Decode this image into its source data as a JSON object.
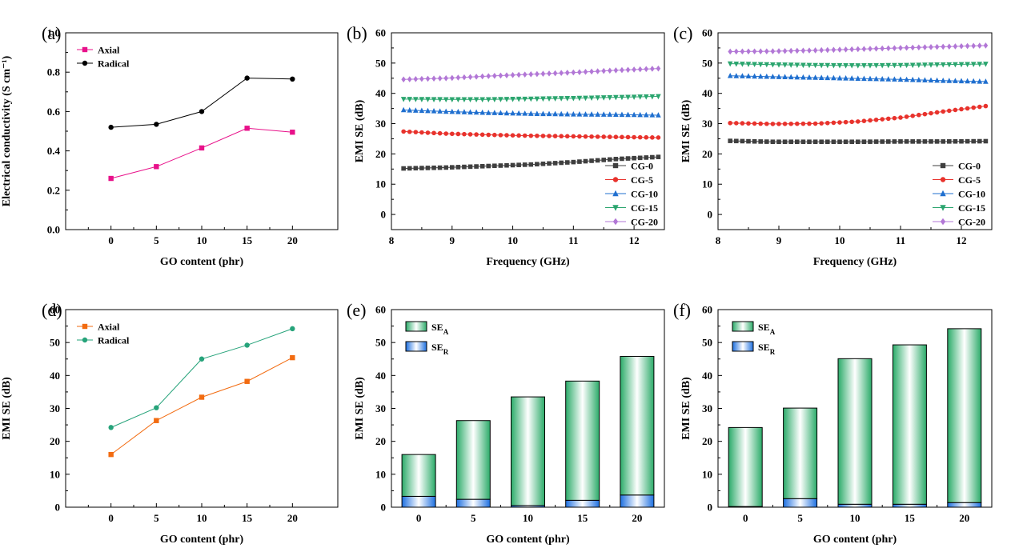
{
  "colors": {
    "axial_a": "#e8118a",
    "radical_a": "#000000",
    "cg0": "#3f3f3f",
    "cg5": "#e8322c",
    "cg10": "#1f6fcf",
    "cg15": "#2aa56e",
    "cg20": "#b277d6",
    "axial_d": "#f26b10",
    "radical_d": "#26a37a",
    "se_a": "#2bab69",
    "se_r": "#1d6fe0"
  },
  "chart_data": [
    {
      "panel": "(a)",
      "type": "line",
      "x": [
        0,
        5,
        10,
        15,
        20
      ],
      "xlabel": "GO content (phr)",
      "ylabel": "Electrical conductivity (S cm⁻¹)",
      "xticks": [
        "0",
        "5",
        "10",
        "15",
        "20"
      ],
      "yticks": [
        "0.0",
        "0.2",
        "0.4",
        "0.6",
        "0.8",
        "1.0"
      ],
      "ylim": [
        0,
        1.0
      ],
      "series": [
        {
          "name": "Axial",
          "values": [
            0.26,
            0.32,
            0.415,
            0.515,
            0.495
          ],
          "marker": "square"
        },
        {
          "name": "Radical",
          "values": [
            0.52,
            0.535,
            0.6,
            0.77,
            0.765
          ],
          "marker": "circle"
        }
      ],
      "legend": "top-left"
    },
    {
      "panel": "(b)",
      "type": "line",
      "x_range": [
        8.2,
        12.4
      ],
      "xlabel": "Frequency (GHz)",
      "ylabel": "EMI SE (dB)",
      "xticks": [
        "8",
        "9",
        "10",
        "11",
        "12"
      ],
      "yticks": [
        "0",
        "10",
        "20",
        "30",
        "40",
        "50",
        "60"
      ],
      "xlim": [
        8,
        12.5
      ],
      "ylim": [
        -5,
        60
      ],
      "series": [
        {
          "name": "CG-0",
          "values": [
            15.2,
            15.5,
            16.0,
            16.5,
            17.3,
            18.3,
            19.0
          ],
          "marker": "square"
        },
        {
          "name": "CG-5",
          "values": [
            27.4,
            26.7,
            26.3,
            26.0,
            25.8,
            25.6,
            25.4
          ],
          "marker": "circle"
        },
        {
          "name": "CG-10",
          "values": [
            34.5,
            34.0,
            33.6,
            33.3,
            33.1,
            33.0,
            32.8
          ],
          "marker": "triangle-up"
        },
        {
          "name": "CG-15",
          "values": [
            38.1,
            38.0,
            38.0,
            38.2,
            38.4,
            38.7,
            39.0
          ],
          "marker": "triangle-down"
        },
        {
          "name": "CG-20",
          "values": [
            44.6,
            45.0,
            45.7,
            46.3,
            46.9,
            47.6,
            48.2
          ],
          "marker": "diamond"
        }
      ],
      "legend": "bottom-right"
    },
    {
      "panel": "(c)",
      "type": "line",
      "x_range": [
        8.2,
        12.4
      ],
      "xlabel": "Frequency (GHz)",
      "ylabel": "EMI SE (dB)",
      "xticks": [
        "8",
        "9",
        "10",
        "11",
        "12"
      ],
      "yticks": [
        "0",
        "10",
        "20",
        "30",
        "40",
        "50",
        "60"
      ],
      "xlim": [
        8,
        12.5
      ],
      "ylim": [
        -5,
        60
      ],
      "series": [
        {
          "name": "CG-0",
          "values": [
            24.3,
            24.0,
            24.0,
            24.0,
            24.1,
            24.1,
            24.2
          ],
          "marker": "square"
        },
        {
          "name": "CG-5",
          "values": [
            30.2,
            29.9,
            30.0,
            30.7,
            32.0,
            34.0,
            35.8
          ],
          "marker": "circle"
        },
        {
          "name": "CG-10",
          "values": [
            45.8,
            45.5,
            45.2,
            44.9,
            44.6,
            44.2,
            43.9
          ],
          "marker": "triangle-up"
        },
        {
          "name": "CG-15",
          "values": [
            49.8,
            49.5,
            49.3,
            49.2,
            49.3,
            49.5,
            49.7
          ],
          "marker": "triangle-down"
        },
        {
          "name": "CG-20",
          "values": [
            53.8,
            53.9,
            54.2,
            54.6,
            55.0,
            55.4,
            55.8
          ],
          "marker": "diamond"
        }
      ],
      "legend": "bottom-right"
    },
    {
      "panel": "(d)",
      "type": "line",
      "x": [
        0,
        5,
        10,
        15,
        20
      ],
      "xlabel": "GO content (phr)",
      "ylabel": "EMI SE (dB)",
      "xticks": [
        "0",
        "5",
        "10",
        "15",
        "20"
      ],
      "yticks": [
        "0",
        "10",
        "20",
        "30",
        "40",
        "50",
        "60"
      ],
      "ylim": [
        0,
        60
      ],
      "series": [
        {
          "name": "Axial",
          "values": [
            16.0,
            26.3,
            33.4,
            38.2,
            45.4
          ],
          "marker": "square"
        },
        {
          "name": "Radical",
          "values": [
            24.2,
            30.2,
            45.0,
            49.2,
            54.2
          ],
          "marker": "circle"
        }
      ],
      "legend": "top-left"
    },
    {
      "panel": "(e)",
      "type": "bar",
      "categories": [
        "0",
        "5",
        "10",
        "15",
        "20"
      ],
      "xlabel": "GO content (phr)",
      "ylabel": "EMI SE (dB)",
      "yticks": [
        "0",
        "10",
        "20",
        "30",
        "40",
        "50",
        "60"
      ],
      "ylim": [
        0,
        60
      ],
      "stacked": true,
      "series": [
        {
          "name": "SE_R",
          "values": [
            3.3,
            2.4,
            0.5,
            2.1,
            3.7
          ]
        },
        {
          "name": "SE_A",
          "values": [
            12.7,
            23.9,
            33.0,
            36.2,
            42.1
          ]
        }
      ],
      "legend": "top-left"
    },
    {
      "panel": "(f)",
      "type": "bar",
      "categories": [
        "0",
        "5",
        "10",
        "15",
        "20"
      ],
      "xlabel": "GO content (phr)",
      "ylabel": "EMI SE (dB)",
      "yticks": [
        "0",
        "10",
        "20",
        "30",
        "40",
        "50",
        "60"
      ],
      "ylim": [
        0,
        60
      ],
      "stacked": true,
      "series": [
        {
          "name": "SE_R",
          "values": [
            0.2,
            2.6,
            0.9,
            0.9,
            1.4
          ]
        },
        {
          "name": "SE_A",
          "values": [
            24.0,
            27.5,
            44.2,
            48.4,
            52.8
          ]
        }
      ],
      "legend": "top-left"
    }
  ]
}
